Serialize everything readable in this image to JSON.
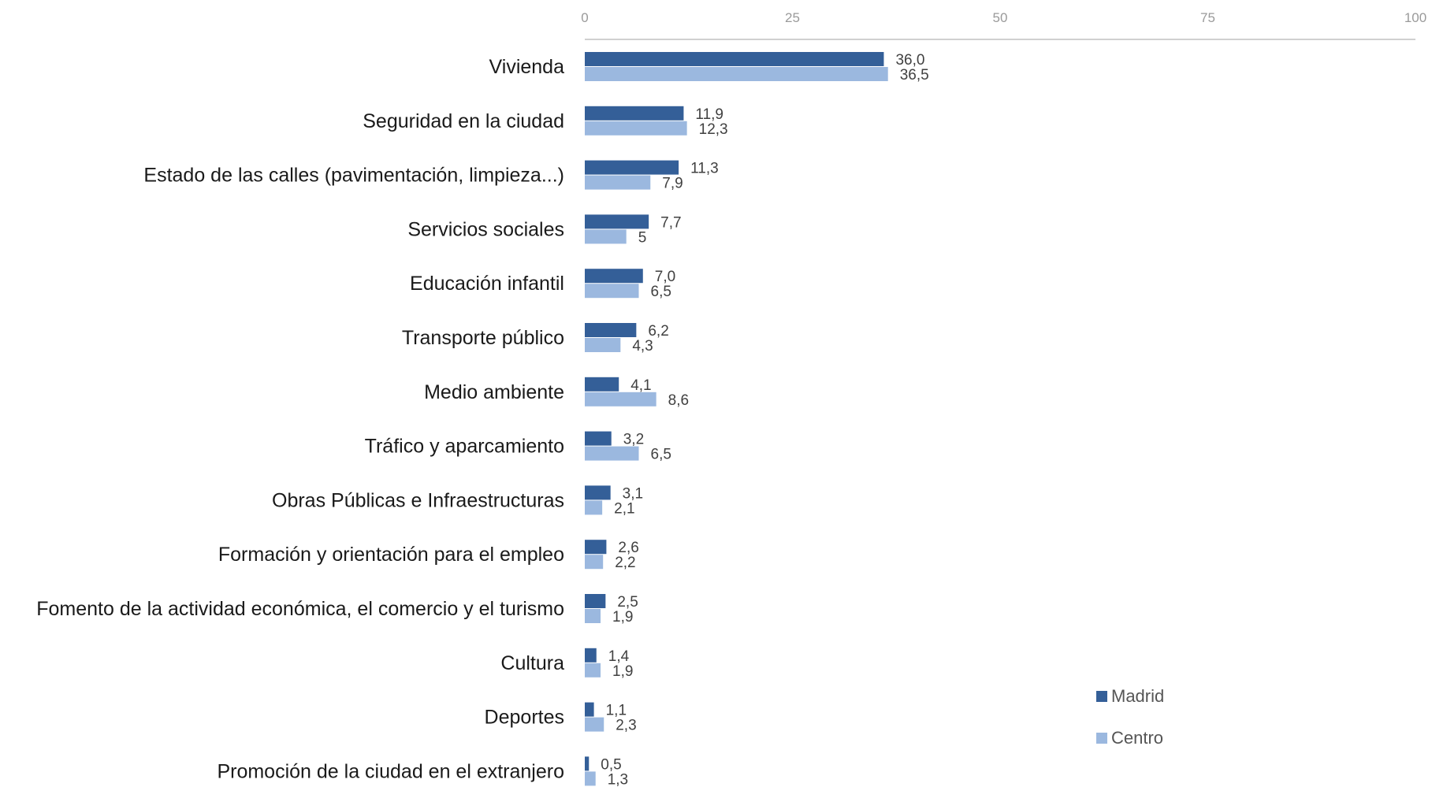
{
  "chart_data": {
    "type": "bar",
    "orientation": "horizontal",
    "xlim": [
      0,
      100
    ],
    "ticks": [
      0,
      25,
      50,
      75,
      100
    ],
    "tick_labels": [
      "0",
      "25",
      "50",
      "75",
      "100"
    ],
    "categories": [
      "Vivienda",
      "Seguridad en la ciudad",
      "Estado de las calles (pavimentación, limpieza...)",
      "Servicios sociales",
      "Educación infantil",
      "Transporte público",
      "Medio ambiente",
      "Tráfico y aparcamiento",
      "Obras Públicas e Infraestructuras",
      "Formación y orientación para el empleo",
      "Fomento de la actividad económica, el comercio y el turismo",
      "Cultura",
      "Deportes",
      "Promoción de la ciudad en el extranjero"
    ],
    "series": [
      {
        "name": "Madrid",
        "color": "#345f98",
        "values": [
          36.0,
          11.9,
          11.3,
          7.7,
          7.0,
          6.2,
          4.1,
          3.2,
          3.1,
          2.6,
          2.5,
          1.4,
          1.1,
          0.5
        ],
        "labels": [
          "36,0",
          "11,9",
          "11,3",
          "7,7",
          "7,0",
          "6,2",
          "4,1",
          "3,2",
          "3,1",
          "2,6",
          "2,5",
          "1,4",
          "1,1",
          "0,5"
        ]
      },
      {
        "name": "Centro",
        "color": "#9bb8df",
        "values": [
          36.5,
          12.3,
          7.9,
          5,
          6.5,
          4.3,
          8.6,
          6.5,
          2.1,
          2.2,
          1.9,
          1.9,
          2.3,
          1.3
        ],
        "labels": [
          "36,5",
          "12,3",
          "7,9",
          "5",
          "6,5",
          "4,3",
          "8,6",
          "6,5",
          "2,1",
          "2,2",
          "1,9",
          "1,9",
          "2,3",
          "1,3"
        ]
      }
    ],
    "axis_position": "top",
    "legend_position": "bottom-right",
    "grid": false
  }
}
